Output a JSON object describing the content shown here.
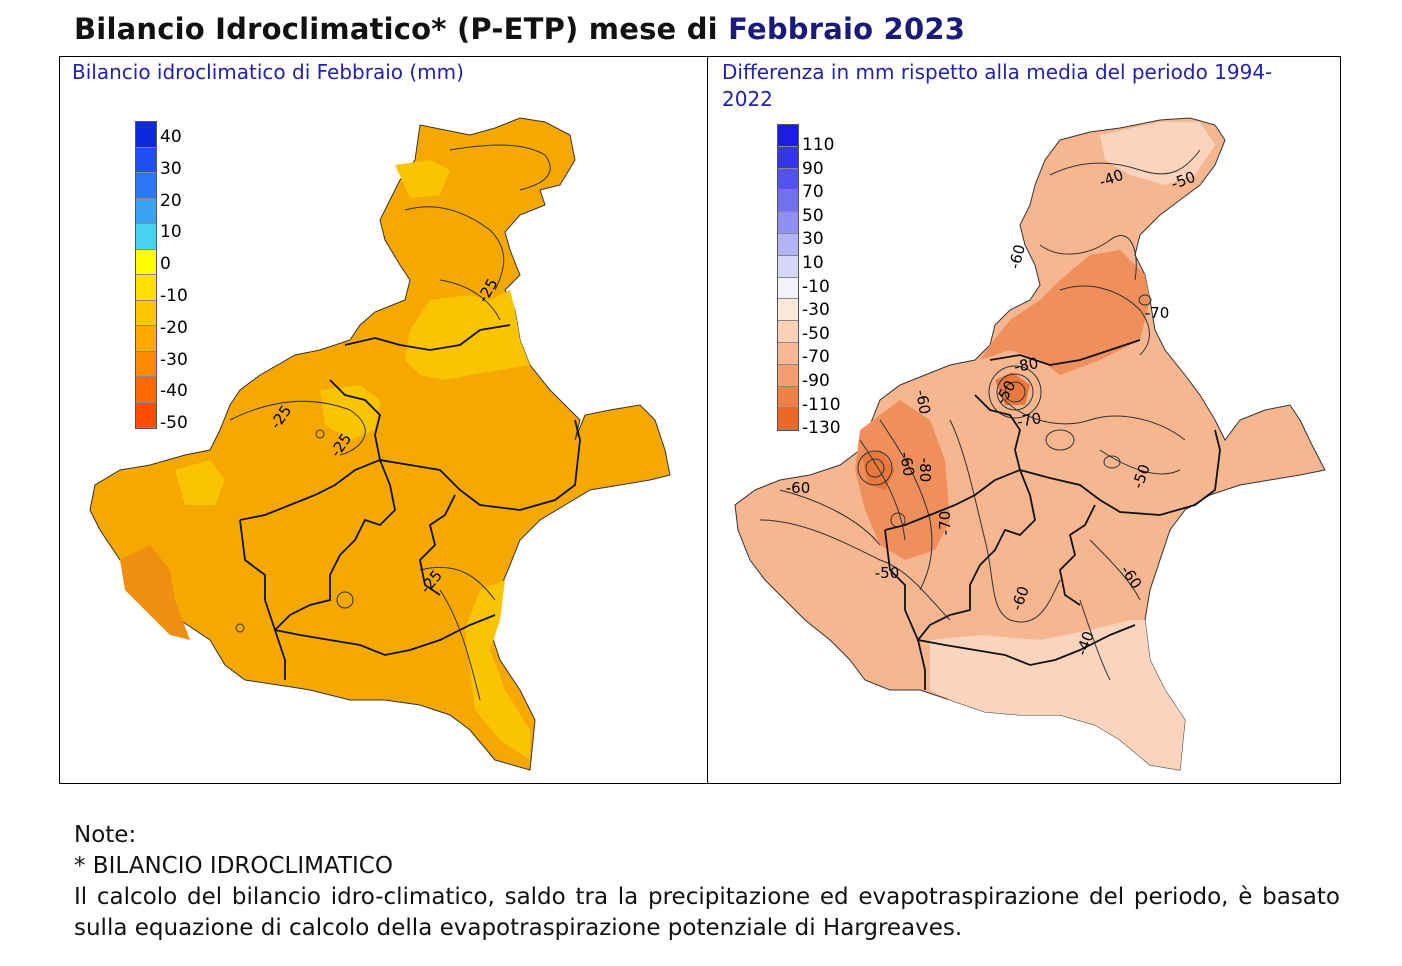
{
  "title": {
    "main": "Bilancio Idroclimatico* (P-ETP) mese di ",
    "highlight": "Febbraio 2023"
  },
  "left_panel": {
    "title": "Bilancio idroclimatico di Febbraio (mm)",
    "legend": {
      "labels": [
        "40",
        "30",
        "20",
        "10",
        "0",
        "-10",
        "-20",
        "-30",
        "-40",
        "-50"
      ],
      "colors": [
        "#0b2ae0",
        "#1f4ff0",
        "#2e78f5",
        "#3aa3f5",
        "#48d2f2",
        "#ffff00",
        "#ffe000",
        "#ffc400",
        "#ffa800",
        "#ff8a00",
        "#ff6a00",
        "#ff4d00"
      ]
    },
    "fill_color": "#f5a800",
    "light_color": "#fbc400",
    "dark_color": "#ef8e10",
    "contour_labels": [
      "-25",
      "-25",
      "-25",
      "-25"
    ]
  },
  "right_panel": {
    "title": "Differenza in mm rispetto alla media del periodo 1994-2022",
    "legend": {
      "labels": [
        "110",
        "90",
        "70",
        "50",
        "30",
        "10",
        "-10",
        "-30",
        "-50",
        "-70",
        "-90",
        "-110",
        "-130"
      ],
      "colors": [
        "#1c1ce6",
        "#3535ea",
        "#5252ee",
        "#7171f2",
        "#9090f4",
        "#b3b3f7",
        "#d6d6fa",
        "#f2f2fc",
        "#fde8dc",
        "#fbd1b8",
        "#f8b792",
        "#f49c6d",
        "#f08048",
        "#ec6624"
      ]
    },
    "fill_color": "#f5b690",
    "light_color": "#fad4bd",
    "dark_color": "#ee8f5c",
    "contour_labels": [
      "-40",
      "-50",
      "-60",
      "-70",
      "-80",
      "-60",
      "-70",
      "-60",
      "-80",
      "-70",
      "-60",
      "-50",
      "-50",
      "-60",
      "-60",
      "-40",
      "-50"
    ]
  },
  "notes": {
    "heading": "Note:",
    "subheading": "* BILANCIO IDROCLIMATICO",
    "text": "Il calcolo del bilancio idro-climatico, saldo tra la precipitazione ed evapotraspirazione del periodo, è basato sulla equazione di calcolo della evapotraspirazione potenziale di Hargreaves."
  }
}
